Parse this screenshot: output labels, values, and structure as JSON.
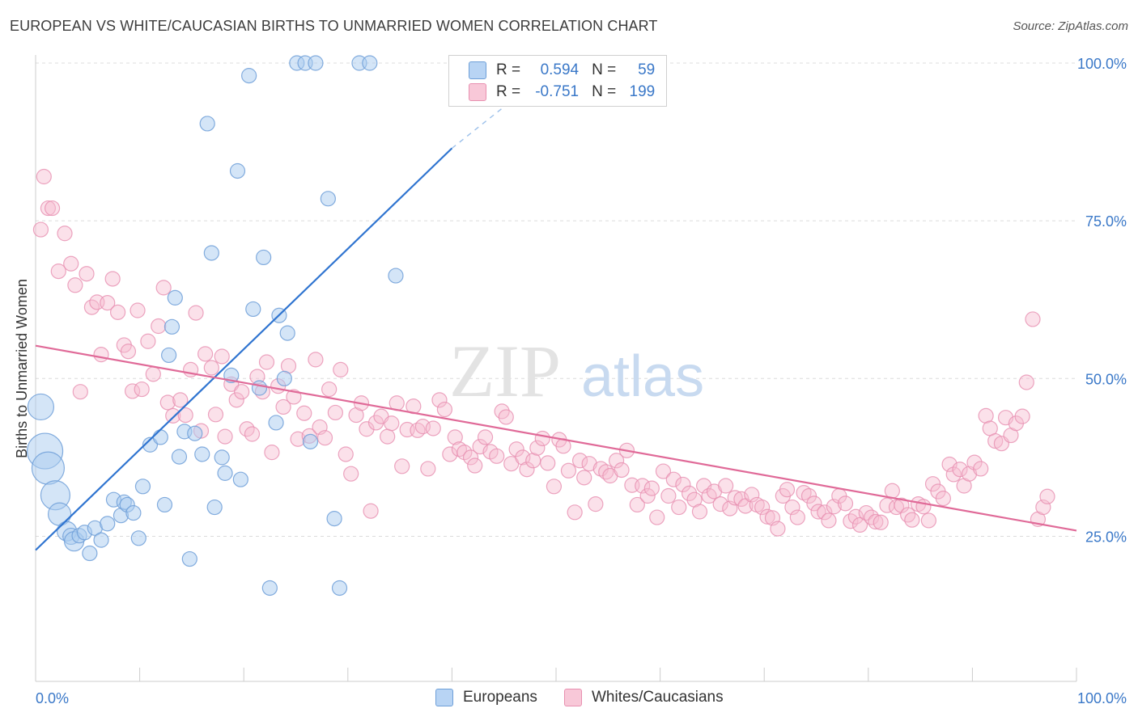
{
  "title": "EUROPEAN VS WHITE/CAUCASIAN BIRTHS TO UNMARRIED WOMEN CORRELATION CHART",
  "source": "Source: ZipAtlas.com",
  "watermark": {
    "zip": "ZIP",
    "atlas": "atlas"
  },
  "legend": {
    "r_label": "R =",
    "n_label": "N =",
    "rows": [
      {
        "series": "Europeans",
        "r": "0.594",
        "n": "59",
        "fill": "#b8d4f4",
        "stroke": "#6e9fd8"
      },
      {
        "series": "Whites/Caucasians",
        "r": "-0.751",
        "n": "199",
        "fill": "#f8c8d8",
        "stroke": "#e890b0"
      }
    ]
  },
  "colors": {
    "blue_fill": "#a9cbf0",
    "blue_stroke": "#6f9fd8",
    "blue_line": "#2f74d0",
    "pink_fill": "#f6bdd0",
    "pink_stroke": "#e78fb0",
    "pink_line": "#e06a98",
    "tick_label": "#3a78c8",
    "grid": "#dcdcdc",
    "axis": "#cccccc"
  },
  "chart_data": {
    "type": "scatter",
    "title": "EUROPEAN VS WHITE/CAUCASIAN BIRTHS TO UNMARRIED WOMEN CORRELATION CHART",
    "xlabel": "",
    "ylabel": "Births to Unmarried Women",
    "xlim": [
      0,
      100
    ],
    "ylim": [
      2,
      100
    ],
    "x_tick_labels": [
      "0.0%",
      "100.0%"
    ],
    "y_ticks": [
      {
        "value": 25,
        "label": "25.0%"
      },
      {
        "value": 50,
        "label": "50.0%"
      },
      {
        "value": 75,
        "label": "75.0%"
      },
      {
        "value": 100,
        "label": "100.0%"
      }
    ],
    "grid": "horizontal dashed",
    "legend_position": "top-center and bottom",
    "series": [
      {
        "name": "Europeans",
        "r": 0.594,
        "n": 59,
        "trend": {
          "x": [
            0,
            40
          ],
          "y": [
            22.8,
            86.5
          ],
          "dashed_to": [
            48,
            97
          ]
        },
        "points": [
          [
            0.5,
            45.5,
            16
          ],
          [
            0.9,
            38.5,
            22
          ],
          [
            1.2,
            35.8,
            20
          ],
          [
            1.9,
            31.5,
            18
          ],
          [
            2.3,
            28.5,
            14
          ],
          [
            3.0,
            25.8,
            12
          ],
          [
            3.4,
            25.0,
            10
          ],
          [
            3.7,
            24.2,
            12
          ],
          [
            4.2,
            25.1,
            9
          ],
          [
            4.7,
            25.6,
            9
          ],
          [
            5.2,
            22.3,
            9
          ],
          [
            5.7,
            26.3,
            9
          ],
          [
            6.3,
            24.4,
            9
          ],
          [
            6.9,
            27.0,
            9
          ],
          [
            7.5,
            30.8,
            9
          ],
          [
            8.2,
            28.3,
            9
          ],
          [
            8.5,
            30.4,
            9
          ],
          [
            8.8,
            30.0,
            9
          ],
          [
            9.4,
            28.7,
            9
          ],
          [
            9.9,
            24.7,
            9
          ],
          [
            10.3,
            32.9,
            9
          ],
          [
            11.0,
            39.5,
            9
          ],
          [
            12.0,
            40.7,
            9
          ],
          [
            12.4,
            30.0,
            9
          ],
          [
            12.8,
            53.7,
            9
          ],
          [
            13.1,
            58.2,
            9
          ],
          [
            13.4,
            62.8,
            9
          ],
          [
            13.8,
            37.6,
            9
          ],
          [
            14.3,
            41.6,
            9
          ],
          [
            14.8,
            21.4,
            9
          ],
          [
            15.3,
            41.3,
            9
          ],
          [
            16.0,
            38.0,
            9
          ],
          [
            16.5,
            90.4,
            9
          ],
          [
            16.9,
            69.9,
            9
          ],
          [
            17.2,
            29.6,
            9
          ],
          [
            17.9,
            37.5,
            9
          ],
          [
            18.2,
            35.0,
            9
          ],
          [
            18.8,
            50.5,
            9
          ],
          [
            19.4,
            82.9,
            9
          ],
          [
            19.7,
            34.0,
            9
          ],
          [
            20.5,
            98.0,
            9
          ],
          [
            20.9,
            61.0,
            9
          ],
          [
            21.5,
            48.5,
            9
          ],
          [
            21.9,
            69.2,
            9
          ],
          [
            22.5,
            16.8,
            9
          ],
          [
            23.1,
            43.0,
            9
          ],
          [
            23.4,
            60.0,
            9
          ],
          [
            23.9,
            50.0,
            9
          ],
          [
            24.2,
            57.2,
            9
          ],
          [
            25.1,
            100,
            9
          ],
          [
            25.9,
            100,
            9
          ],
          [
            26.4,
            40.0,
            9
          ],
          [
            26.9,
            100,
            9
          ],
          [
            28.1,
            78.5,
            9
          ],
          [
            28.7,
            27.8,
            9
          ],
          [
            29.2,
            16.8,
            9
          ],
          [
            31.1,
            100,
            9
          ],
          [
            32.1,
            100,
            9
          ],
          [
            34.6,
            66.3,
            9
          ]
        ]
      },
      {
        "name": "Whites/Caucasians",
        "r": -0.751,
        "n": 199,
        "trend": {
          "x": [
            0,
            100
          ],
          "y": [
            55.2,
            25.9
          ]
        },
        "points": [
          [
            0.5,
            73.6
          ],
          [
            0.8,
            82.0
          ],
          [
            1.2,
            77.0
          ],
          [
            1.6,
            77.0
          ],
          [
            2.2,
            67.0
          ],
          [
            2.8,
            73.0
          ],
          [
            3.4,
            68.2
          ],
          [
            3.8,
            64.8
          ],
          [
            4.3,
            47.9
          ],
          [
            4.9,
            66.6
          ],
          [
            5.4,
            61.3
          ],
          [
            5.9,
            62.1
          ],
          [
            6.3,
            53.8
          ],
          [
            6.9,
            62.0
          ],
          [
            7.4,
            65.8
          ],
          [
            7.9,
            60.5
          ],
          [
            8.5,
            55.3
          ],
          [
            8.9,
            54.3
          ],
          [
            9.3,
            48.0
          ],
          [
            9.8,
            60.8
          ],
          [
            10.2,
            48.3
          ],
          [
            10.8,
            55.9
          ],
          [
            11.3,
            50.7
          ],
          [
            11.8,
            58.3
          ],
          [
            12.3,
            64.4
          ],
          [
            12.7,
            46.2
          ],
          [
            13.2,
            44.1
          ],
          [
            13.9,
            46.6
          ],
          [
            14.4,
            44.2
          ],
          [
            14.9,
            51.4
          ],
          [
            15.4,
            60.4
          ],
          [
            15.9,
            41.7
          ],
          [
            16.3,
            53.9
          ],
          [
            16.9,
            51.7
          ],
          [
            17.3,
            44.3
          ],
          [
            17.9,
            53.5
          ],
          [
            18.2,
            40.8
          ],
          [
            18.8,
            49.1
          ],
          [
            19.3,
            46.6
          ],
          [
            19.8,
            47.9
          ],
          [
            20.3,
            42.0
          ],
          [
            20.8,
            41.2
          ],
          [
            21.3,
            50.3
          ],
          [
            21.8,
            47.9
          ],
          [
            22.2,
            52.6
          ],
          [
            22.7,
            38.3
          ],
          [
            23.3,
            48.8
          ],
          [
            23.8,
            45.5
          ],
          [
            24.3,
            52.0
          ],
          [
            24.8,
            47.1
          ],
          [
            25.2,
            40.4
          ],
          [
            25.8,
            44.5
          ],
          [
            26.3,
            40.9
          ],
          [
            26.9,
            53.0
          ],
          [
            27.3,
            42.3
          ],
          [
            27.8,
            40.6
          ],
          [
            28.2,
            48.3
          ],
          [
            28.8,
            44.6
          ],
          [
            29.3,
            51.4
          ],
          [
            29.8,
            38.0
          ],
          [
            30.3,
            34.9
          ],
          [
            30.8,
            44.2
          ],
          [
            31.3,
            46.1
          ],
          [
            31.8,
            42.0
          ],
          [
            32.2,
            29.0
          ],
          [
            32.7,
            43.0
          ],
          [
            33.2,
            44.0
          ],
          [
            33.8,
            40.8
          ],
          [
            34.2,
            42.9
          ],
          [
            34.7,
            46.1
          ],
          [
            35.2,
            36.1
          ],
          [
            35.7,
            41.9
          ],
          [
            36.3,
            45.6
          ],
          [
            36.7,
            41.8
          ],
          [
            37.2,
            42.4
          ],
          [
            37.7,
            35.7
          ],
          [
            38.2,
            42.1
          ],
          [
            38.8,
            46.6
          ],
          [
            39.3,
            45.1
          ],
          [
            39.8,
            38.0
          ],
          [
            40.3,
            40.7
          ],
          [
            40.7,
            38.8
          ],
          [
            41.2,
            38.3
          ],
          [
            41.8,
            37.5
          ],
          [
            42.2,
            36.2
          ],
          [
            42.7,
            39.2
          ],
          [
            43.2,
            40.7
          ],
          [
            43.7,
            38.4
          ],
          [
            44.3,
            37.7
          ],
          [
            44.8,
            44.8
          ],
          [
            45.2,
            43.9
          ],
          [
            45.7,
            36.5
          ],
          [
            46.2,
            38.8
          ],
          [
            46.8,
            37.5
          ],
          [
            47.2,
            35.6
          ],
          [
            47.8,
            37.0
          ],
          [
            48.2,
            39.0
          ],
          [
            48.7,
            40.5
          ],
          [
            49.2,
            36.6
          ],
          [
            49.8,
            32.9
          ],
          [
            50.3,
            40.3
          ],
          [
            50.7,
            39.3
          ],
          [
            51.2,
            35.4
          ],
          [
            51.8,
            28.8
          ],
          [
            52.3,
            37.0
          ],
          [
            52.7,
            34.3
          ],
          [
            53.2,
            36.5
          ],
          [
            53.8,
            30.1
          ],
          [
            54.3,
            35.7
          ],
          [
            54.8,
            35.2
          ],
          [
            55.2,
            34.6
          ],
          [
            55.8,
            37.0
          ],
          [
            56.3,
            35.5
          ],
          [
            56.8,
            38.6
          ],
          [
            57.3,
            33.1
          ],
          [
            57.8,
            30.0
          ],
          [
            58.3,
            33.0
          ],
          [
            58.8,
            31.4
          ],
          [
            59.2,
            32.6
          ],
          [
            59.7,
            28.0
          ],
          [
            60.3,
            35.3
          ],
          [
            60.8,
            31.4
          ],
          [
            61.3,
            34.0
          ],
          [
            61.8,
            29.6
          ],
          [
            62.2,
            33.2
          ],
          [
            62.8,
            31.8
          ],
          [
            63.3,
            30.8
          ],
          [
            63.8,
            28.9
          ],
          [
            64.2,
            33.0
          ],
          [
            64.7,
            31.4
          ],
          [
            65.2,
            32.1
          ],
          [
            65.8,
            30.1
          ],
          [
            66.3,
            33.0
          ],
          [
            66.7,
            29.4
          ],
          [
            67.2,
            31.1
          ],
          [
            67.8,
            30.9
          ],
          [
            68.2,
            29.8
          ],
          [
            68.8,
            31.6
          ],
          [
            69.3,
            30.0
          ],
          [
            69.8,
            29.6
          ],
          [
            70.3,
            28.1
          ],
          [
            70.8,
            27.9
          ],
          [
            71.3,
            26.2
          ],
          [
            71.8,
            31.4
          ],
          [
            72.2,
            32.4
          ],
          [
            72.7,
            29.6
          ],
          [
            73.2,
            28.0
          ],
          [
            73.8,
            31.9
          ],
          [
            74.3,
            31.4
          ],
          [
            74.8,
            30.2
          ],
          [
            75.2,
            28.9
          ],
          [
            75.8,
            28.8
          ],
          [
            76.2,
            27.5
          ],
          [
            76.7,
            29.7
          ],
          [
            77.2,
            31.4
          ],
          [
            77.8,
            30.2
          ],
          [
            78.3,
            27.4
          ],
          [
            78.8,
            28.1
          ],
          [
            79.2,
            26.8
          ],
          [
            79.8,
            28.7
          ],
          [
            80.3,
            28.0
          ],
          [
            80.7,
            27.3
          ],
          [
            81.2,
            27.2
          ],
          [
            81.8,
            29.9
          ],
          [
            82.3,
            32.2
          ],
          [
            82.7,
            29.6
          ],
          [
            83.2,
            29.9
          ],
          [
            83.8,
            28.4
          ],
          [
            84.2,
            27.6
          ],
          [
            84.8,
            30.1
          ],
          [
            85.3,
            29.7
          ],
          [
            85.8,
            27.5
          ],
          [
            86.2,
            33.3
          ],
          [
            86.7,
            32.1
          ],
          [
            87.2,
            31.0
          ],
          [
            87.8,
            36.4
          ],
          [
            88.2,
            34.8
          ],
          [
            88.8,
            35.6
          ],
          [
            89.2,
            33.0
          ],
          [
            89.7,
            34.9
          ],
          [
            90.2,
            36.7
          ],
          [
            90.8,
            35.7
          ],
          [
            91.3,
            44.1
          ],
          [
            91.7,
            42.1
          ],
          [
            92.2,
            40.1
          ],
          [
            92.8,
            39.7
          ],
          [
            93.2,
            43.8
          ],
          [
            93.7,
            41.0
          ],
          [
            94.2,
            42.9
          ],
          [
            94.8,
            44.0
          ],
          [
            95.2,
            49.4
          ],
          [
            95.8,
            59.4
          ],
          [
            96.3,
            27.7
          ],
          [
            96.8,
            29.6
          ],
          [
            97.2,
            31.3
          ]
        ]
      }
    ]
  }
}
